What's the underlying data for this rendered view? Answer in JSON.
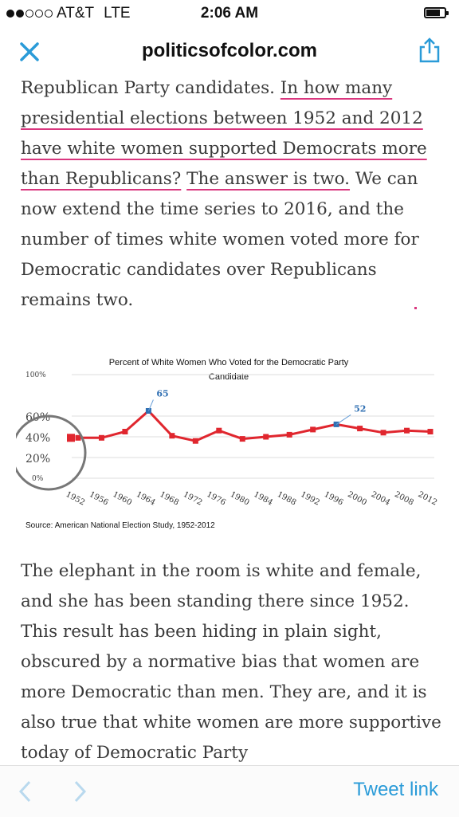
{
  "status_bar": {
    "carrier": "AT&T",
    "network": "LTE",
    "time": "2:06 AM",
    "signal_bars": 2
  },
  "nav": {
    "site": "politicsofcolor.com",
    "close_icon": "close-icon",
    "share_icon": "share-icon"
  },
  "article": {
    "p1": [
      {
        "t": "Republican Party candidates. "
      },
      {
        "t": "In how many presidential elections between 1952 and 2012 have white women supported Democrats more than Republicans?",
        "hl": true
      },
      {
        "t": " "
      },
      {
        "t": "The answer is two.",
        "hl": true
      },
      {
        "t": " We can now extend the time series to 2016, and the number of times white women voted more for Democratic candidates over Republicans remains two."
      }
    ],
    "p2": "The elephant in the room is white and female, and she has been standing there since 1952. This result has been hiding in plain sight, obscured by a normative bias that women are more Democratic than men. They are, and it is also true that white women are more supportive today of Democratic Party"
  },
  "chart_data": {
    "type": "line",
    "title": "Percent of White Women Who Voted for the Democratic Party Candidate",
    "x": [
      "1952",
      "1956",
      "1960",
      "1964",
      "1968",
      "1972",
      "1976",
      "1980",
      "1984",
      "1988",
      "1992",
      "1996",
      "2000",
      "2004",
      "2008",
      "2012"
    ],
    "values": [
      39,
      39,
      45,
      65,
      41,
      36,
      46,
      38,
      40,
      42,
      47,
      52,
      48,
      44,
      46,
      45
    ],
    "ylim": [
      0,
      100
    ],
    "y_ticks": [
      "100%",
      "60%",
      "40%",
      "20%",
      "0%"
    ],
    "labeled_points": [
      {
        "x": "1964",
        "label": "65"
      },
      {
        "x": "1996",
        "label": "52"
      }
    ],
    "source": "Source: American National Election Study, 1952-2012",
    "line_color": "#e0262e",
    "highlight_color": "#2f6fb2",
    "circle_color": "#777777",
    "grid": true
  },
  "toolbar": {
    "back_icon": "chevron-left-icon",
    "forward_icon": "chevron-right-icon",
    "tweet_label": "Tweet link"
  }
}
